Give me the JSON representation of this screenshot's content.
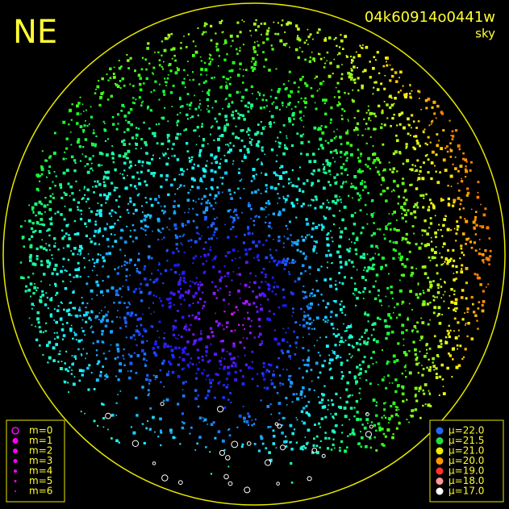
{
  "header": {
    "label": "NE",
    "id": "04k60914o0441w",
    "kind": "sky"
  },
  "legend_m": [
    "m=0",
    "m=1",
    "m=2",
    "m=3",
    "m=4",
    "m=5",
    "m=6"
  ],
  "legend_mu": [
    "μ=22.0",
    "μ=21.5",
    "μ=21.0",
    "μ=20.0",
    "μ=19.0",
    "μ=18.0",
    "μ=17.0"
  ]
}
